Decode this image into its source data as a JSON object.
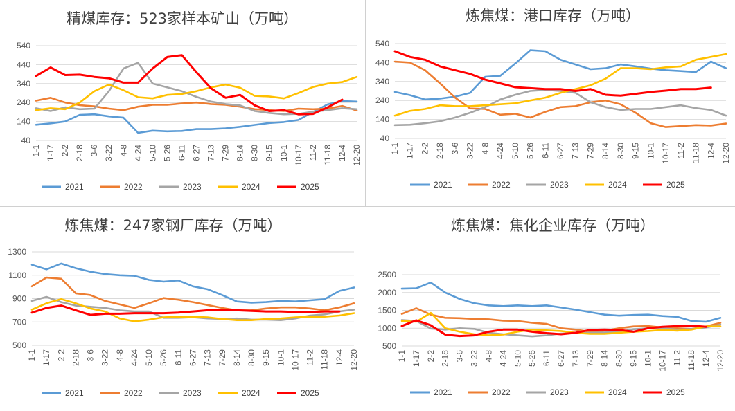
{
  "colors": {
    "2021": "#5b9bd5",
    "2022": "#ed7d31",
    "2023": "#a5a5a5",
    "2024": "#ffc000",
    "2025": "#ff0000"
  },
  "chart_data": [
    {
      "type": "line",
      "title": "精煤库存：523家样本矿山（万吨）",
      "x": [
        "1-1",
        "1-17",
        "2-2",
        "2-18",
        "3-6",
        "3-22",
        "4-8",
        "4-24",
        "5-10",
        "5-26",
        "6-11",
        "6-27",
        "7-13",
        "7-29",
        "8-14",
        "8-30",
        "9-15",
        "10-1",
        "10-17",
        "11-2",
        "11-18",
        "12-4",
        "12-20"
      ],
      "ylim": [
        40,
        540
      ],
      "yticks": [
        40,
        140,
        240,
        340,
        440,
        540
      ],
      "grid": true,
      "legend": "bottom",
      "series": [
        {
          "name": "2021",
          "values": [
            123,
            130,
            140,
            175,
            178,
            167,
            160,
            80,
            92,
            88,
            90,
            100,
            100,
            104,
            112,
            122,
            132,
            137,
            148,
            190,
            230,
            248,
            245
          ]
        },
        {
          "name": "2022",
          "values": [
            250,
            265,
            240,
            226,
            220,
            208,
            200,
            218,
            228,
            228,
            235,
            240,
            232,
            228,
            218,
            205,
            200,
            195,
            208,
            205,
            208,
            222,
            198
          ]
        },
        {
          "name": "2023",
          "values": [
            210,
            195,
            215,
            205,
            208,
            300,
            420,
            450,
            340,
            320,
            300,
            270,
            245,
            232,
            225,
            195,
            185,
            178,
            180,
            192,
            200,
            210,
            205
          ]
        },
        {
          "name": "2024",
          "values": [
            200,
            210,
            205,
            240,
            300,
            335,
            305,
            268,
            262,
            280,
            285,
            300,
            320,
            335,
            318,
            275,
            272,
            262,
            290,
            322,
            340,
            348,
            375
          ]
        },
        {
          "name": "2025",
          "values": [
            380,
            425,
            385,
            387,
            375,
            368,
            345,
            345,
            420,
            480,
            490,
            400,
            315,
            265,
            280,
            225,
            195,
            200,
            178,
            180,
            215,
            255,
            null
          ]
        }
      ]
    },
    {
      "type": "line",
      "title": "炼焦煤：港口库存（万吨）",
      "x": [
        "1-1",
        "1-17",
        "2-2",
        "2-18",
        "3-6",
        "3-22",
        "4-8",
        "4-24",
        "5-10",
        "5-26",
        "6-11",
        "6-27",
        "7-13",
        "7-29",
        "8-14",
        "8-30",
        "9-15",
        "10-1",
        "10-17",
        "11-2",
        "11-18",
        "12-4",
        "12-20"
      ],
      "ylim": [
        40,
        540
      ],
      "yticks": [
        40,
        140,
        240,
        340,
        440,
        540
      ],
      "grid": true,
      "legend": "bottom",
      "series": [
        {
          "name": "2021",
          "values": [
            285,
            268,
            245,
            250,
            260,
            280,
            365,
            370,
            435,
            505,
            500,
            455,
            430,
            405,
            410,
            430,
            420,
            408,
            400,
            395,
            390,
            445,
            410
          ]
        },
        {
          "name": "2022",
          "values": [
            445,
            440,
            400,
            330,
            255,
            198,
            195,
            165,
            170,
            150,
            180,
            205,
            210,
            230,
            240,
            220,
            175,
            120,
            100,
            105,
            110,
            108,
            118
          ]
        },
        {
          "name": "2023",
          "values": [
            110,
            112,
            120,
            130,
            150,
            175,
            205,
            245,
            270,
            290,
            295,
            290,
            280,
            230,
            205,
            190,
            195,
            195,
            205,
            215,
            200,
            190,
            160
          ]
        },
        {
          "name": "2024",
          "values": [
            160,
            185,
            195,
            215,
            210,
            210,
            215,
            220,
            225,
            240,
            255,
            280,
            300,
            320,
            355,
            410,
            410,
            405,
            415,
            420,
            455,
            470,
            485
          ]
        },
        {
          "name": "2025",
          "values": [
            500,
            470,
            455,
            420,
            400,
            380,
            350,
            330,
            310,
            305,
            300,
            300,
            290,
            300,
            270,
            265,
            275,
            285,
            292,
            300,
            300,
            308,
            null
          ]
        }
      ]
    },
    {
      "type": "line",
      "title": "炼焦煤：247家钢厂库存（万吨）",
      "x": [
        "1-1",
        "1-17",
        "2-2",
        "2-18",
        "3-6",
        "3-22",
        "4-8",
        "4-24",
        "5-10",
        "5-26",
        "6-11",
        "6-27",
        "7-13",
        "7-29",
        "8-14",
        "8-30",
        "9-15",
        "10-1",
        "10-17",
        "11-2",
        "11-18",
        "12-4",
        "12-20"
      ],
      "ylim": [
        500,
        1300
      ],
      "yticks": [
        500,
        700,
        900,
        1100,
        1300
      ],
      "grid": true,
      "legend": "bottom",
      "series": [
        {
          "name": "2021",
          "values": [
            1190,
            1150,
            1200,
            1160,
            1130,
            1110,
            1100,
            1095,
            1060,
            1045,
            1055,
            1005,
            980,
            930,
            875,
            865,
            870,
            880,
            875,
            885,
            895,
            965,
            995
          ]
        },
        {
          "name": "2022",
          "values": [
            1005,
            1080,
            1070,
            945,
            930,
            880,
            850,
            820,
            860,
            905,
            890,
            870,
            845,
            820,
            800,
            800,
            815,
            825,
            825,
            815,
            800,
            825,
            860
          ]
        },
        {
          "name": "2023",
          "values": [
            880,
            915,
            870,
            840,
            830,
            820,
            800,
            790,
            790,
            735,
            735,
            740,
            730,
            725,
            730,
            720,
            720,
            715,
            730,
            755,
            765,
            790,
            805
          ]
        },
        {
          "name": "2024",
          "values": [
            805,
            860,
            895,
            860,
            815,
            790,
            730,
            705,
            720,
            740,
            745,
            745,
            740,
            725,
            715,
            715,
            725,
            730,
            740,
            745,
            745,
            755,
            775
          ]
        },
        {
          "name": "2025",
          "values": [
            780,
            820,
            840,
            800,
            760,
            770,
            770,
            775,
            775,
            775,
            780,
            790,
            800,
            805,
            800,
            795,
            790,
            790,
            785,
            785,
            790,
            790,
            null
          ]
        }
      ]
    },
    {
      "type": "line",
      "title": "炼焦煤：焦化企业库存（万吨）",
      "x": [
        "1-1",
        "1-17",
        "2-2",
        "2-18",
        "3-6",
        "3-22",
        "4-8",
        "4-24",
        "5-10",
        "5-26",
        "6-11",
        "6-27",
        "7-13",
        "7-29",
        "8-14",
        "8-30",
        "9-15",
        "10-1",
        "10-17",
        "11-2",
        "11-18",
        "12-4",
        "12-20"
      ],
      "ylim": [
        500,
        2500
      ],
      "yticks": [
        500,
        1000,
        1500,
        2000,
        2500
      ],
      "grid": true,
      "legend": "bottom",
      "series": [
        {
          "name": "2021",
          "values": [
            2110,
            2120,
            2280,
            2000,
            1820,
            1700,
            1640,
            1620,
            1640,
            1620,
            1640,
            1580,
            1520,
            1450,
            1380,
            1350,
            1370,
            1380,
            1340,
            1320,
            1200,
            1180,
            1290
          ]
        },
        {
          "name": "2022",
          "values": [
            1400,
            1560,
            1380,
            1290,
            1280,
            1260,
            1250,
            1210,
            1200,
            1150,
            1120,
            1000,
            960,
            900,
            930,
            1000,
            1050,
            1060,
            1020,
            1000,
            980,
            1050,
            1150
          ]
        },
        {
          "name": "2023",
          "values": [
            1230,
            1200,
            990,
            960,
            1000,
            980,
            870,
            830,
            800,
            770,
            800,
            850,
            860,
            870,
            880,
            900,
            970,
            1000,
            1000,
            960,
            980,
            1020,
            1100
          ]
        },
        {
          "name": "2024",
          "values": [
            1200,
            1180,
            1430,
            1000,
            900,
            830,
            800,
            820,
            900,
            960,
            940,
            920,
            870,
            840,
            840,
            870,
            900,
            920,
            950,
            930,
            960,
            1050,
            1050
          ]
        },
        {
          "name": "2025",
          "values": [
            1060,
            1220,
            1080,
            820,
            780,
            800,
            900,
            960,
            960,
            900,
            860,
            830,
            870,
            950,
            960,
            950,
            900,
            1000,
            1040,
            1060,
            1070,
            1040,
            null
          ]
        }
      ]
    }
  ]
}
